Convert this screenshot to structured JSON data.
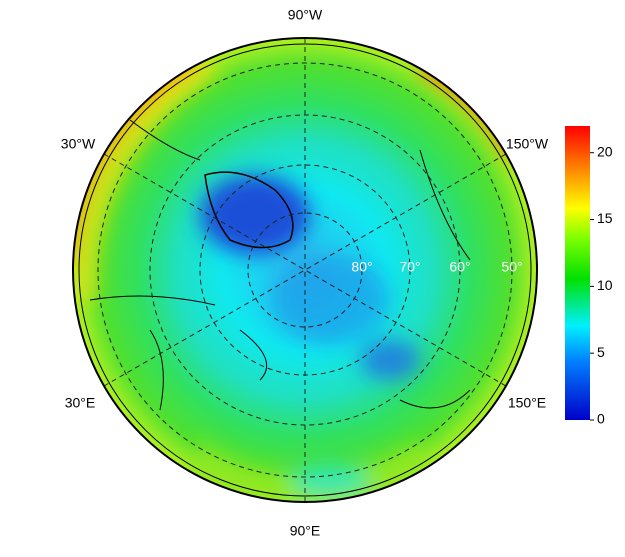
{
  "map": {
    "meridian_labels": [
      "90°W",
      "30°W",
      "150°W",
      "30°E",
      "150°E",
      "90°E"
    ],
    "parallel_labels": [
      "80°",
      "70°",
      "60°",
      "50°"
    ]
  },
  "colorbar": {
    "lim": [
      0,
      22
    ],
    "ticks": [
      0,
      5,
      10,
      15,
      20
    ]
  }
}
